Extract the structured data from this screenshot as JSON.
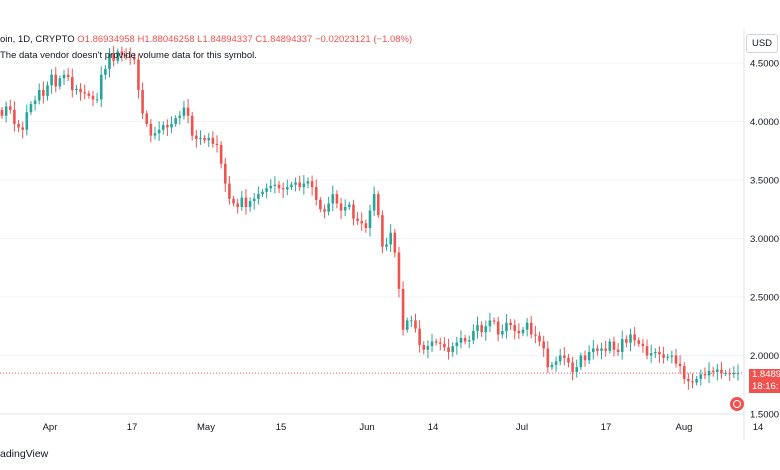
{
  "header": {
    "symbol": "oin, 1D, CRYPTO",
    "ohlc": "O1.86934958  H1.88046258  L1.84894337  C1.84894337  −0.02023121 (−1.08%)",
    "notice": "The data vendor doesn't provide volume data for this symbol."
  },
  "currency": "USD",
  "price_tag": {
    "price": "1.8489",
    "countdown": "18:16:"
  },
  "brand": "adingView",
  "colors": {
    "up": "#26a69a",
    "down": "#ef5350",
    "grid": "#f0f3fa",
    "text": "#131722"
  },
  "chart_data": {
    "type": "candlestick",
    "title": "oin, 1D, CRYPTO",
    "ylabel": "USD",
    "ylim": [
      1.5,
      4.8
    ],
    "y_ticks": [
      "4.5000",
      "4.0000",
      "3.5000",
      "3.0000",
      "2.5000",
      "2.0000",
      "1.5000"
    ],
    "x_ticks": [
      "Apr",
      "17",
      "May",
      "15",
      "Jun",
      "14",
      "Jul",
      "17",
      "Aug",
      "14"
    ],
    "last_price": 1.84894337,
    "grid": true,
    "series": [
      {
        "name": "close",
        "values": [
          4.05,
          4.13,
          4.1,
          3.98,
          3.95,
          3.93,
          4.08,
          4.15,
          4.18,
          4.27,
          4.22,
          4.31,
          4.4,
          4.3,
          4.37,
          4.4,
          4.38,
          4.27,
          4.28,
          4.25,
          4.24,
          4.22,
          4.19,
          4.19,
          4.4,
          4.45,
          4.58,
          4.52,
          4.6,
          4.57,
          4.56,
          4.55,
          4.53,
          4.27,
          4.07,
          3.98,
          3.88,
          3.9,
          3.93,
          3.97,
          3.95,
          3.98,
          4.03,
          4.05,
          4.12,
          4.05,
          3.88,
          3.85,
          3.86,
          3.84,
          3.86,
          3.81,
          3.8,
          3.64,
          3.47,
          3.34,
          3.3,
          3.27,
          3.35,
          3.27,
          3.32,
          3.34,
          3.38,
          3.4,
          3.43,
          3.45,
          3.46,
          3.43,
          3.42,
          3.44,
          3.46,
          3.48,
          3.44,
          3.47,
          3.49,
          3.44,
          3.33,
          3.25,
          3.23,
          3.3,
          3.38,
          3.3,
          3.24,
          3.27,
          3.29,
          3.17,
          3.15,
          3.13,
          3.09,
          3.24,
          3.38,
          3.2,
          2.93,
          2.95,
          3.05,
          2.88,
          2.57,
          2.22,
          2.3,
          2.3,
          2.23,
          2.09,
          2.05,
          2.08,
          2.12,
          2.11,
          2.1,
          2.07,
          2.03,
          2.08,
          2.11,
          2.15,
          2.12,
          2.13,
          2.21,
          2.26,
          2.2,
          2.25,
          2.3,
          2.29,
          2.18,
          2.21,
          2.28,
          2.26,
          2.21,
          2.19,
          2.22,
          2.28,
          2.18,
          2.17,
          2.12,
          2.06,
          1.9,
          1.92,
          1.95,
          2.0,
          1.98,
          1.94,
          1.86,
          1.9,
          2.0,
          1.96,
          2.03,
          2.06,
          2.04,
          2.06,
          2.04,
          2.12,
          2.05,
          2.03,
          2.14,
          2.11,
          2.18,
          2.13,
          2.1,
          2.08,
          2.0,
          2.02,
          2.03,
          2.01,
          1.98,
          1.99,
          2.0,
          1.93,
          1.91,
          1.8,
          1.78,
          1.77,
          1.8,
          1.84,
          1.83,
          1.87,
          1.86,
          1.88,
          1.85,
          1.85,
          1.84,
          1.85,
          1.85
        ]
      }
    ]
  }
}
